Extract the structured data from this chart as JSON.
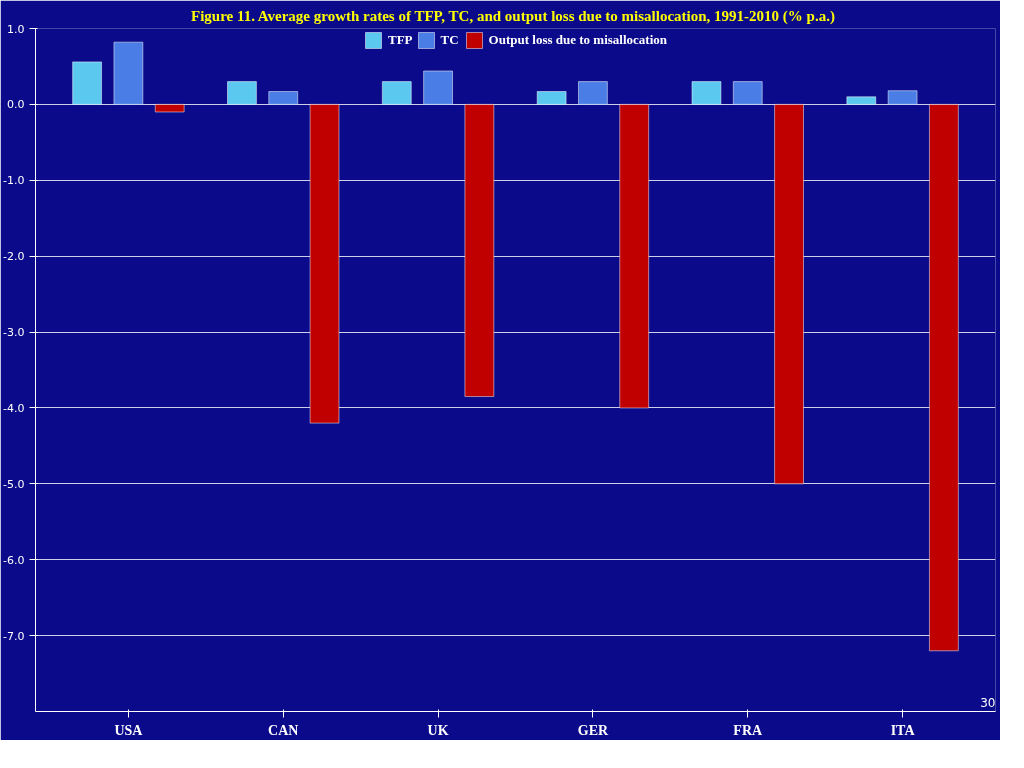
{
  "chart_data": {
    "type": "bar",
    "title": "Figure 11.  Average growth rates of TFP, TC, and output loss due to misallocation, 1991-2010 (% p.a.)",
    "categories": [
      "USA",
      "CAN",
      "UK",
      "GER",
      "FRA",
      "ITA"
    ],
    "series": [
      {
        "name": "TFP",
        "color": "#5bc8f0",
        "values": [
          0.56,
          0.3,
          0.3,
          0.17,
          0.3,
          0.1
        ]
      },
      {
        "name": "TC",
        "color": "#4a7ee6",
        "values": [
          0.82,
          0.17,
          0.44,
          0.3,
          0.3,
          0.18
        ]
      },
      {
        "name": "Output loss due to misallocation",
        "color": "#c00000",
        "values": [
          -0.1,
          -4.2,
          -3.85,
          -4.0,
          -5.0,
          -7.2
        ]
      }
    ],
    "ylim": [
      -8.0,
      1.0
    ],
    "yticks": [
      {
        "value": 1,
        "label": "1.0"
      },
      {
        "value": 0,
        "label": "0.0"
      },
      {
        "value": -1,
        "label": "-1.0"
      },
      {
        "value": -2,
        "label": "-2.0"
      },
      {
        "value": -3,
        "label": "-3.0"
      },
      {
        "value": -4,
        "label": "-4.0"
      },
      {
        "value": -5,
        "label": "-5.0"
      },
      {
        "value": -6,
        "label": "-6.0"
      },
      {
        "value": -7,
        "label": "-7.0"
      }
    ],
    "grid": "y",
    "legend": "top",
    "annotations": [
      "30"
    ]
  }
}
